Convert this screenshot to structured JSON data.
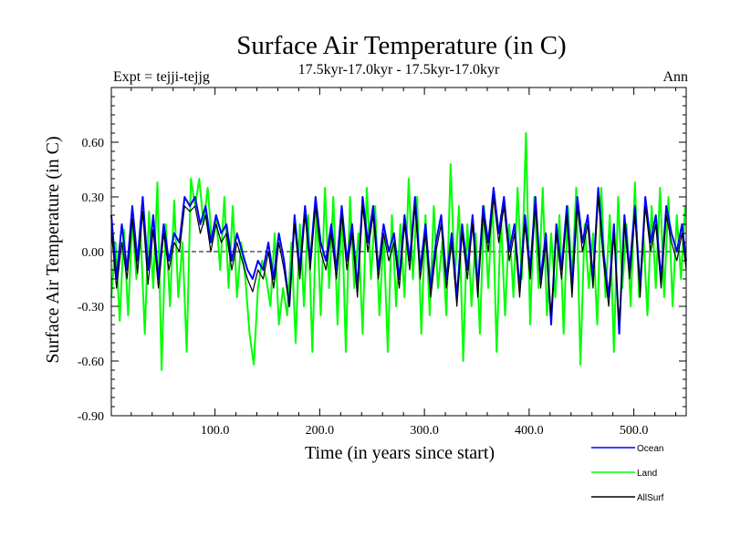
{
  "chart_data": {
    "type": "line",
    "title": "Surface Air Temperature (in C)",
    "subtitle": "17.5kyr-17.0kyr - 17.5kyr-17.0kyr",
    "left_label": "Expt = tejji-tejjg",
    "right_label": "Ann",
    "xlabel": "Time (in years since start)",
    "ylabel": "Surface Air Temperature (in C)",
    "xlim": [
      1,
      550
    ],
    "ylim": [
      -0.9,
      0.9
    ],
    "x_ticks": [
      100,
      200,
      300,
      400,
      500
    ],
    "x_tick_labels": [
      "100.0",
      "200.0",
      "300.0",
      "400.0",
      "500.0"
    ],
    "y_ticks": [
      -0.9,
      -0.6,
      -0.3,
      0.0,
      0.3,
      0.6
    ],
    "y_tick_labels": [
      "-0.90",
      "-0.60",
      "-0.30",
      "0.00",
      "0.30",
      "0.60"
    ],
    "zero_line": true,
    "legend_position": "bottom-right",
    "series": [
      {
        "name": "Land",
        "color": "#00ff00",
        "x_start": 1,
        "x_step": 4,
        "values": [
          -0.25,
          0.05,
          -0.38,
          0.12,
          -0.35,
          0.18,
          -0.15,
          0.1,
          -0.45,
          0.22,
          -0.2,
          0.38,
          -0.65,
          0.15,
          -0.3,
          0.28,
          -0.25,
          0.05,
          -0.55,
          0.4,
          0.25,
          0.4,
          0.15,
          0.35,
          0.05,
          0.2,
          -0.1,
          0.3,
          -0.2,
          0.25,
          -0.25,
          0.05,
          -0.15,
          -0.45,
          -0.62,
          -0.2,
          -0.05,
          -0.15,
          -0.3,
          0.1,
          -0.4,
          -0.2,
          -0.35,
          0.05,
          -0.5,
          0.15,
          -0.3,
          0.2,
          -0.55,
          0.25,
          -0.35,
          0.35,
          -0.2,
          0.3,
          -0.4,
          0.25,
          -0.55,
          0.3,
          -0.2,
          0.1,
          -0.45,
          0.35,
          -0.15,
          0.25,
          -0.35,
          0.1,
          -0.55,
          0.2,
          -0.3,
          0.15,
          -0.25,
          0.4,
          -0.15,
          0.3,
          -0.45,
          0.2,
          -0.35,
          0.25,
          -0.2,
          0.05,
          -0.35,
          0.48,
          -0.15,
          0.25,
          -0.6,
          0.15,
          -0.3,
          0.1,
          -0.45,
          0.25,
          -0.2,
          0.3,
          -0.55,
          0.2,
          -0.35,
          0.15,
          -0.25,
          0.35,
          -0.15,
          0.65,
          -0.4,
          0.3,
          -0.2,
          0.35,
          -0.35,
          0.1,
          -0.25,
          0.2,
          -0.45,
          0.25,
          -0.15,
          0.35,
          -0.62,
          0.15,
          -0.2,
          0.1,
          -0.4,
          0.35,
          -0.25,
          0.2,
          -0.55,
          0.3,
          -0.2,
          0.15,
          -0.3,
          0.38,
          -0.25,
          0.1,
          -0.35,
          0.25,
          -0.2,
          0.35,
          -0.25,
          0.3,
          -0.3,
          0.2,
          -0.15,
          0.25
        ]
      },
      {
        "name": "Ocean",
        "color": "#0000ff",
        "x_start": 1,
        "x_step": 5,
        "values": [
          0.2,
          -0.15,
          0.15,
          -0.1,
          0.25,
          -0.05,
          0.3,
          -0.1,
          0.2,
          -0.15,
          0.15,
          -0.05,
          0.1,
          0.05,
          0.3,
          0.25,
          0.3,
          0.15,
          0.25,
          0.05,
          0.2,
          0.1,
          0.15,
          -0.05,
          0.1,
          0.0,
          -0.1,
          -0.15,
          -0.05,
          -0.1,
          0.05,
          -0.15,
          0.1,
          -0.05,
          -0.3,
          0.2,
          -0.1,
          0.25,
          -0.05,
          0.3,
          0.05,
          -0.05,
          0.15,
          -0.1,
          0.25,
          -0.05,
          0.15,
          -0.2,
          0.3,
          0.05,
          0.25,
          -0.1,
          0.15,
          0.0,
          0.1,
          -0.15,
          0.2,
          -0.05,
          0.3,
          -0.1,
          0.15,
          -0.2,
          0.05,
          0.2,
          -0.15,
          0.1,
          -0.25,
          0.15,
          -0.1,
          0.2,
          -0.2,
          0.25,
          0.05,
          0.35,
          0.1,
          0.3,
          0.0,
          0.15,
          -0.2,
          0.2,
          -0.1,
          0.3,
          -0.15,
          0.1,
          -0.4,
          0.15,
          -0.1,
          0.25,
          -0.2,
          0.3,
          0.05,
          0.2,
          -0.15,
          0.35,
          0.0,
          -0.25,
          0.15,
          -0.45,
          0.2,
          -0.1,
          0.25,
          -0.2,
          0.3,
          0.05,
          0.2,
          -0.15,
          0.25,
          0.1,
          0.0,
          0.15,
          -0.05
        ]
      },
      {
        "name": "AllSurf",
        "color": "#000000",
        "x_start": 1,
        "x_step": 5,
        "values": [
          0.12,
          -0.2,
          0.05,
          -0.15,
          0.18,
          -0.12,
          0.22,
          -0.18,
          0.12,
          -0.2,
          0.1,
          -0.1,
          0.05,
          0.0,
          0.25,
          0.22,
          0.25,
          0.1,
          0.2,
          0.0,
          0.15,
          0.05,
          0.1,
          -0.1,
          0.05,
          -0.05,
          -0.15,
          -0.22,
          -0.1,
          -0.15,
          0.0,
          -0.2,
          0.05,
          -0.1,
          -0.3,
          0.15,
          -0.15,
          0.2,
          -0.1,
          0.25,
          0.0,
          -0.1,
          0.1,
          -0.15,
          0.2,
          -0.1,
          0.1,
          -0.25,
          0.25,
          0.0,
          0.2,
          -0.15,
          0.1,
          -0.05,
          0.05,
          -0.2,
          0.15,
          -0.1,
          0.25,
          -0.15,
          0.1,
          -0.25,
          0.0,
          0.15,
          -0.2,
          0.05,
          -0.3,
          0.1,
          -0.15,
          0.15,
          -0.25,
          0.2,
          0.0,
          0.3,
          0.05,
          0.25,
          -0.05,
          0.1,
          -0.25,
          0.15,
          -0.15,
          0.25,
          -0.2,
          0.05,
          -0.35,
          0.1,
          -0.15,
          0.2,
          -0.25,
          0.25,
          0.0,
          0.15,
          -0.2,
          0.3,
          -0.05,
          -0.3,
          0.1,
          -0.4,
          0.15,
          -0.15,
          0.2,
          -0.25,
          0.25,
          0.0,
          0.15,
          -0.2,
          0.2,
          0.05,
          -0.05,
          0.1,
          -0.1
        ]
      }
    ],
    "legend_order": [
      "Ocean",
      "Land",
      "AllSurf"
    ]
  }
}
